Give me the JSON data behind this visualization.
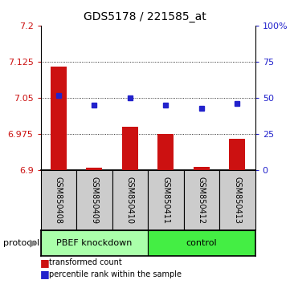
{
  "title": "GDS5178 / 221585_at",
  "samples": [
    "GSM850408",
    "GSM850409",
    "GSM850410",
    "GSM850411",
    "GSM850412",
    "GSM850413"
  ],
  "bar_values": [
    7.115,
    6.905,
    6.99,
    6.975,
    6.907,
    6.965
  ],
  "bar_baseline": 6.9,
  "percentile_values": [
    52,
    45,
    50,
    45,
    43,
    46
  ],
  "ylim_left": [
    6.9,
    7.2
  ],
  "ylim_right": [
    0,
    100
  ],
  "yticks_left": [
    6.9,
    6.975,
    7.05,
    7.125,
    7.2
  ],
  "ytick_labels_left": [
    "6.9",
    "6.975",
    "7.05",
    "7.125",
    "7.2"
  ],
  "yticks_right": [
    0,
    25,
    50,
    75,
    100
  ],
  "ytick_labels_right": [
    "0",
    "25",
    "50",
    "75",
    "100%"
  ],
  "bar_color": "#cc1111",
  "blue_color": "#2222cc",
  "group1_label": "PBEF knockdown",
  "group2_label": "control",
  "group1_color": "#aaffaa",
  "group2_color": "#44ee44",
  "protocol_label": "protocol",
  "legend_red": "transformed count",
  "legend_blue": "percentile rank within the sample",
  "box_color": "#cccccc",
  "fig_width": 3.61,
  "fig_height": 3.54,
  "title_fontsize": 10,
  "axis_fontsize": 8,
  "label_fontsize": 7,
  "proto_fontsize": 8
}
